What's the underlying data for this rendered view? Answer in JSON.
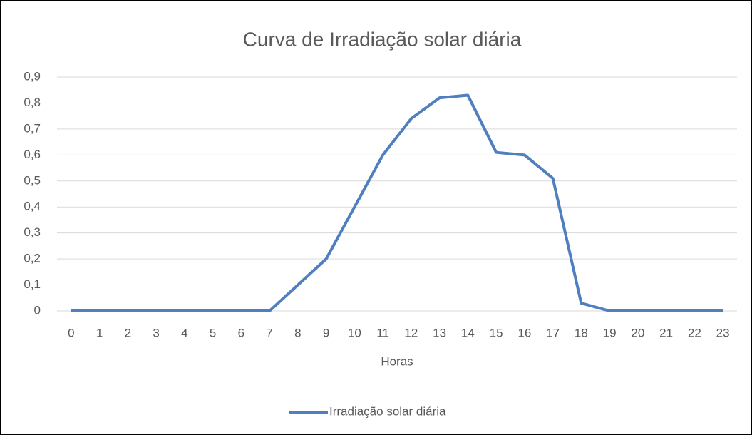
{
  "chart_data": {
    "type": "line",
    "title": "Curva de Irradiação solar diária",
    "x_label": "Horas",
    "categories": [
      "0",
      "1",
      "2",
      "3",
      "4",
      "5",
      "6",
      "7",
      "8",
      "9",
      "10",
      "11",
      "12",
      "13",
      "14",
      "15",
      "16",
      "17",
      "18",
      "19",
      "20",
      "21",
      "22",
      "23"
    ],
    "series": [
      {
        "name": "Irradiação solar diária",
        "color": "#4f7fbf",
        "values": [
          0,
          0,
          0,
          0,
          0,
          0,
          0,
          0,
          0.1,
          0.2,
          0.4,
          0.6,
          0.74,
          0.82,
          0.83,
          0.61,
          0.6,
          0.51,
          0.03,
          0,
          0,
          0,
          0,
          0
        ]
      }
    ],
    "ylim": [
      0,
      0.9
    ],
    "yticks": [
      0,
      {
        "value": 0.1,
        "label": "0,1"
      },
      {
        "value": 0.2,
        "label": "0,2"
      },
      {
        "value": 0.3,
        "label": "0,3"
      },
      {
        "value": 0.4,
        "label": "0,4"
      },
      {
        "value": 0.5,
        "label": "0,5"
      },
      {
        "value": 0.6,
        "label": "0,6"
      },
      {
        "value": 0.7,
        "label": "0,7"
      },
      {
        "value": 0.8,
        "label": "0,8"
      },
      {
        "value": 0.9,
        "label": "0,9"
      }
    ],
    "grid": true,
    "legend": "bottom"
  }
}
